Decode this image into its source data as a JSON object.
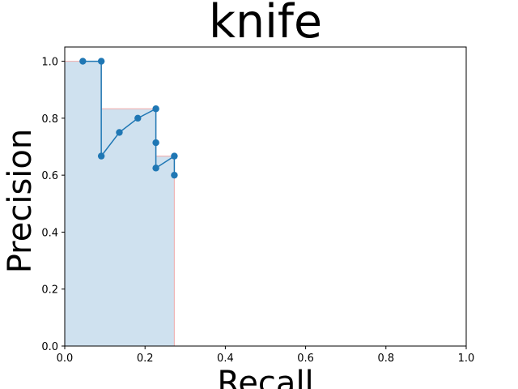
{
  "chart_data": {
    "type": "line",
    "title": "knife",
    "xlabel": "Recall",
    "ylabel": "Precision",
    "xlim": [
      0,
      1
    ],
    "ylim": [
      0,
      1.05
    ],
    "grid": false,
    "x_ticks": [
      "0.0",
      "0.2",
      "0.4",
      "0.6",
      "0.8",
      "1.0"
    ],
    "y_ticks": [
      "0.0",
      "0.2",
      "0.4",
      "0.6",
      "0.8",
      "1.0"
    ],
    "x_tick_values": [
      0,
      0.2,
      0.4,
      0.6,
      0.8,
      1.0
    ],
    "y_tick_values": [
      0,
      0.2,
      0.4,
      0.6,
      0.8,
      1.0
    ],
    "series": [
      {
        "x": [
          0.045,
          0.091,
          0.091,
          0.136,
          0.182,
          0.227,
          0.227,
          0.227,
          0.273,
          0.273
        ],
        "y": [
          1.0,
          1.0,
          0.667,
          0.75,
          0.8,
          0.833,
          0.714,
          0.625,
          0.667,
          0.6
        ],
        "color": "#1f77b4"
      }
    ],
    "area": {
      "x": [
        0,
        0.091,
        0.091,
        0.227,
        0.227,
        0.273,
        0.273
      ],
      "y": [
        1.0,
        1.0,
        0.833,
        0.833,
        0.667,
        0.667,
        0
      ],
      "fill": "#cfe1ef",
      "edge": "#f0b6b6"
    }
  }
}
